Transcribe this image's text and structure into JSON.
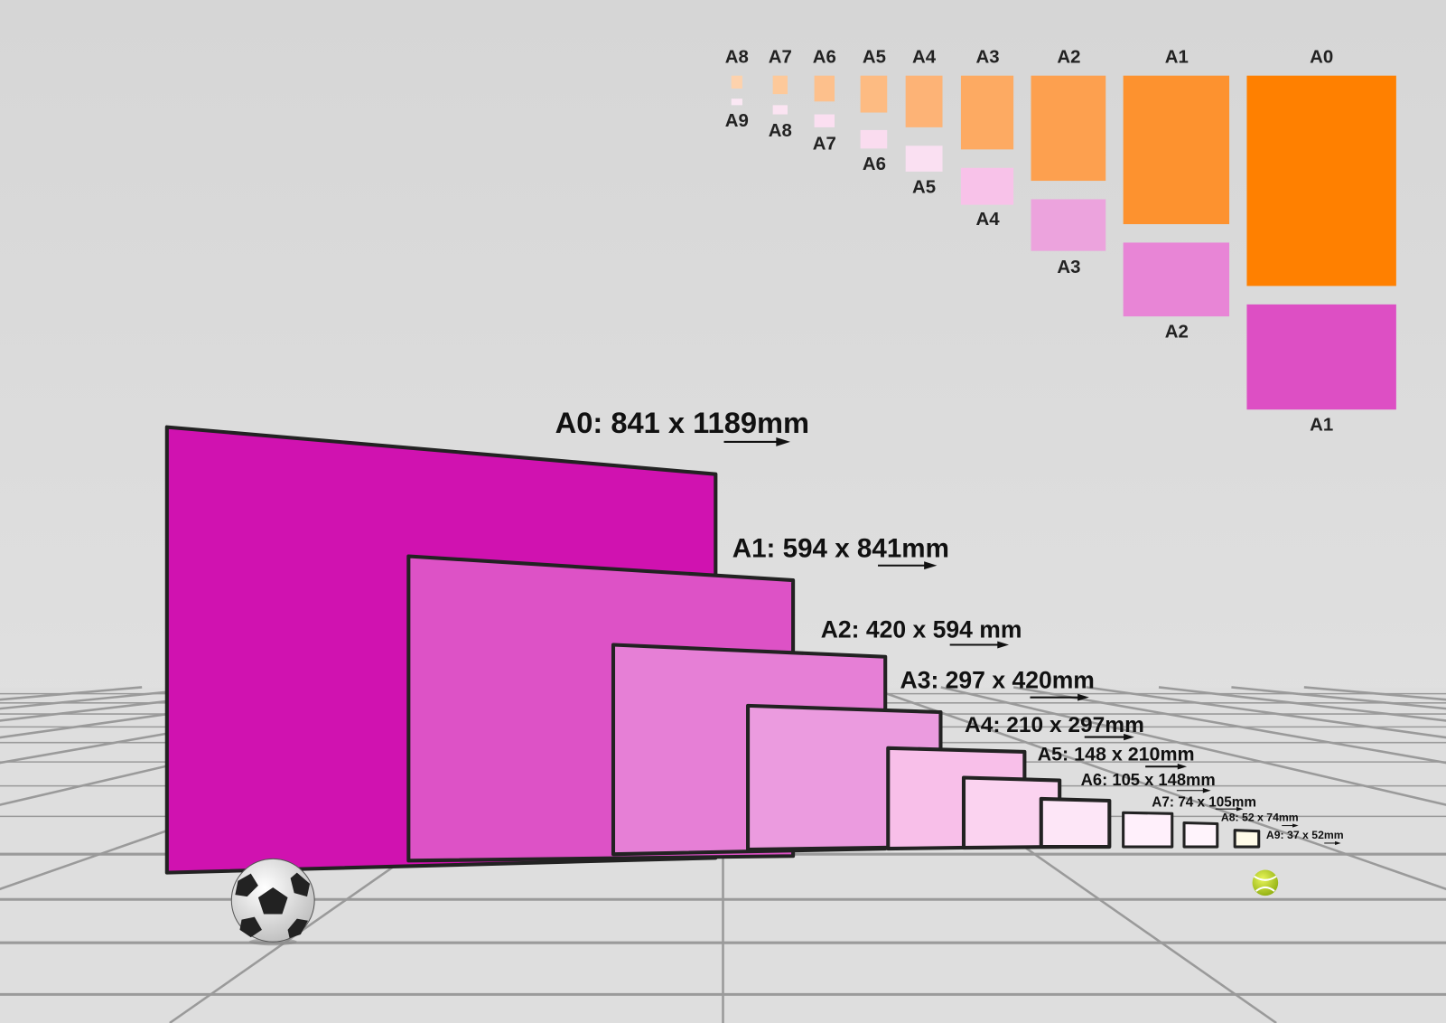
{
  "top_columns": [
    {
      "top": "A8",
      "bottom": "A9"
    },
    {
      "top": "A7",
      "bottom": "A8"
    },
    {
      "top": "A6",
      "bottom": "A7"
    },
    {
      "top": "A5",
      "bottom": "A6"
    },
    {
      "top": "A4",
      "bottom": "A5"
    },
    {
      "top": "A3",
      "bottom": "A4"
    },
    {
      "top": "A2",
      "bottom": "A3"
    },
    {
      "top": "A1",
      "bottom": "A2"
    },
    {
      "top": "A0",
      "bottom": "A1"
    }
  ],
  "sheets": [
    {
      "label": "A0: 841 x 1189mm"
    },
    {
      "label": "A1: 594 x 841mm"
    },
    {
      "label": "A2: 420 x 594 mm"
    },
    {
      "label": "A3: 297 x 420mm"
    },
    {
      "label": "A4: 210 x 297mm"
    },
    {
      "label": "A5: 148 x 210mm"
    },
    {
      "label": "A6: 105 x 148mm"
    },
    {
      "label": "A7: 74 x 105mm"
    },
    {
      "label": "A8: 52 x 74mm"
    },
    {
      "label": "A9: 37 x 52mm"
    }
  ]
}
